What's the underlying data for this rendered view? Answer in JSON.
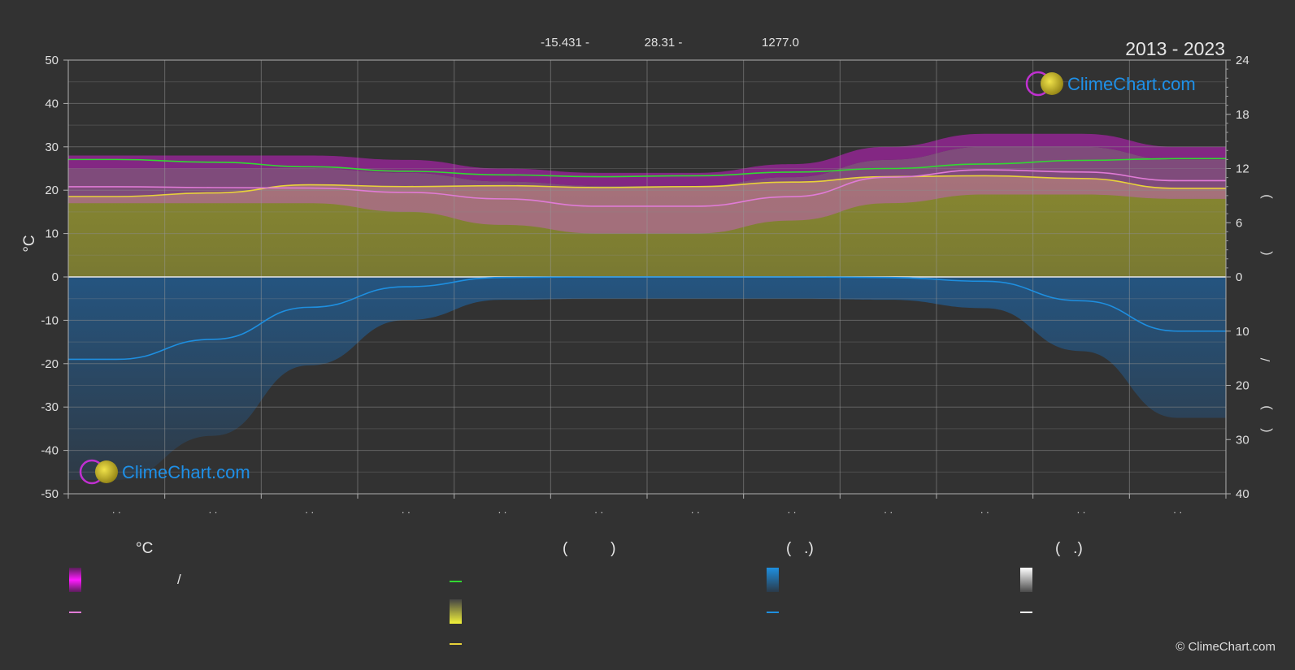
{
  "header": {
    "period": "2013 - 2023",
    "coords": [
      "-15.431 -",
      "28.31 -",
      "1277.0"
    ]
  },
  "watermark": {
    "text": "ClimeChart.com"
  },
  "copyright": "© ClimeChart.com",
  "legend": {
    "col1_title": "°C",
    "col1_slash": "/",
    "col2_title": "(          )",
    "col3_title": "(   .)",
    "col4_title": "(   .)"
  },
  "colors": {
    "background": "#323232",
    "temp_range": "#c61fc6",
    "temp_daily": "#e07bd6",
    "sunshine": "#c9c93a",
    "sunshine_line": "#e8d23a",
    "daylight": "#32d832",
    "precip": "#2a6fb0",
    "precip_line": "#1e8fe0",
    "snow": "#ffffff"
  },
  "chart_data": {
    "type": "line",
    "months": 12,
    "left_axis": {
      "label": "°C",
      "range": [
        -50,
        50
      ],
      "ticks": [
        50,
        40,
        30,
        20,
        10,
        0,
        -10,
        -20,
        -30,
        -40,
        -50
      ]
    },
    "right_axis_top": {
      "range": [
        0,
        24
      ],
      "ticks": [
        24,
        18,
        12,
        6,
        0
      ],
      "label_chars": [
        ")",
        "("
      ]
    },
    "right_axis_bottom": {
      "range": [
        0,
        40
      ],
      "ticks": [
        0,
        10,
        20,
        30,
        40
      ],
      "label_chars": [
        "/",
        ")",
        "("
      ]
    },
    "x_tick_labels": [
      ". .",
      ". .",
      ". .",
      ". .",
      ". .",
      ". .",
      ". .",
      ". .",
      ". .",
      ". .",
      ". .",
      ". ."
    ],
    "series": [
      {
        "key": "daylight",
        "axis": "right_top",
        "values": [
          13.0,
          12.7,
          12.2,
          11.7,
          11.3,
          11.1,
          11.2,
          11.6,
          12.0,
          12.5,
          12.9,
          13.1
        ]
      },
      {
        "key": "sunshine",
        "axis": "right_top",
        "values": [
          8.9,
          9.3,
          10.2,
          10.0,
          10.1,
          9.9,
          10.0,
          10.5,
          11.1,
          11.2,
          10.9,
          9.8
        ]
      },
      {
        "key": "temp_daily",
        "axis": "left",
        "values": [
          20.8,
          20.6,
          20.5,
          19.5,
          18.0,
          16.3,
          16.3,
          18.5,
          23.0,
          24.7,
          24.2,
          22.2
        ]
      },
      {
        "key": "precip",
        "axis": "right_bottom",
        "values": [
          15.2,
          11.5,
          5.6,
          1.8,
          0.1,
          0.0,
          0.0,
          0.0,
          0.1,
          0.8,
          4.4,
          10.0
        ]
      }
    ],
    "temp_max_band": [
      25,
      25,
      25,
      24,
      22,
      21,
      21,
      23,
      27,
      30,
      30,
      27
    ],
    "temp_min_band": [
      17,
      17,
      17,
      15,
      12,
      10,
      10,
      13,
      17,
      19,
      19,
      18
    ]
  }
}
